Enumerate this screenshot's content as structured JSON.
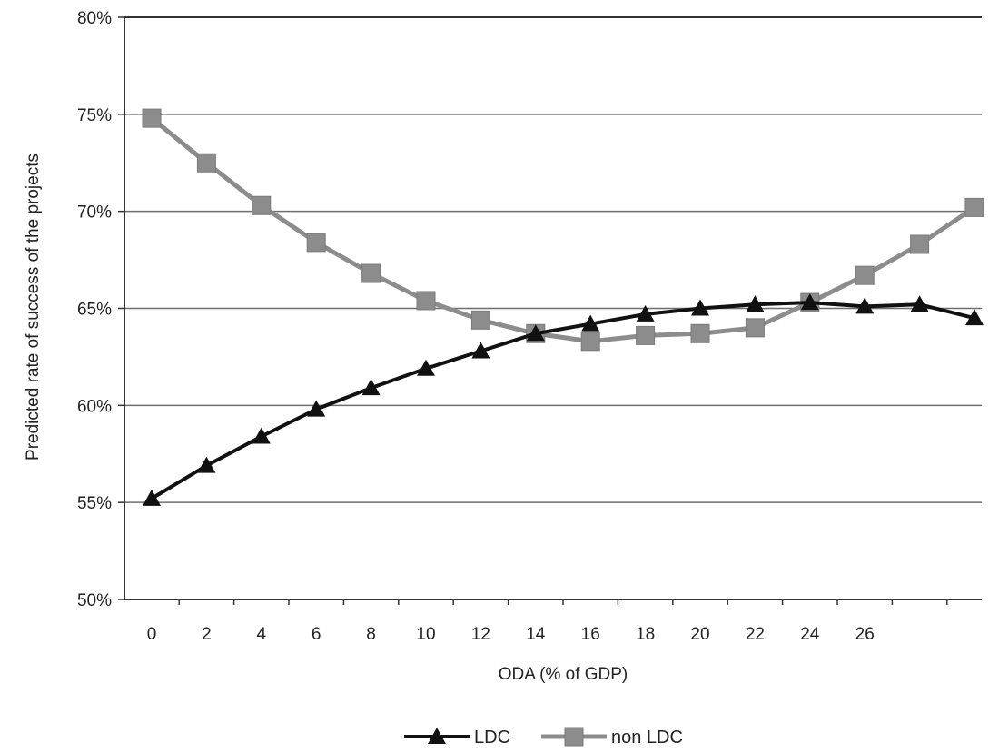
{
  "chart_data": {
    "type": "line",
    "xlabel": "ODA (% of GDP)",
    "ylabel": "Predicted rate of success of the projects",
    "x_tick_labels": [
      "0",
      "2",
      "4",
      "6",
      "8",
      "10",
      "12",
      "14",
      "16",
      "18",
      "20",
      "22",
      "24",
      "26"
    ],
    "y_tick_labels": [
      "50%",
      "55%",
      "60%",
      "65%",
      "70%",
      "75%",
      "80%"
    ],
    "ylim": [
      50,
      80
    ],
    "y_unit": "%",
    "grid": "horizontal",
    "legend_position": "bottom",
    "series": [
      {
        "name": "LDC",
        "color": "#111111",
        "marker": "triangle",
        "x": [
          0,
          2,
          4,
          6,
          8,
          10,
          12,
          14,
          16,
          18,
          20,
          22,
          24,
          26,
          28,
          30
        ],
        "values": [
          55.2,
          56.9,
          58.4,
          59.8,
          60.9,
          61.9,
          62.8,
          63.7,
          64.2,
          64.7,
          65.0,
          65.2,
          65.3,
          65.1,
          65.2,
          64.5
        ]
      },
      {
        "name": "non LDC",
        "color": "#8c8c8c",
        "marker": "square",
        "x": [
          0,
          2,
          4,
          6,
          8,
          10,
          12,
          14,
          16,
          18,
          20,
          22,
          24,
          26,
          28,
          30
        ],
        "values": [
          74.8,
          72.5,
          70.3,
          68.4,
          66.8,
          65.4,
          64.4,
          63.7,
          63.3,
          63.6,
          63.7,
          64.0,
          65.3,
          66.7,
          68.3,
          70.2
        ]
      }
    ]
  }
}
